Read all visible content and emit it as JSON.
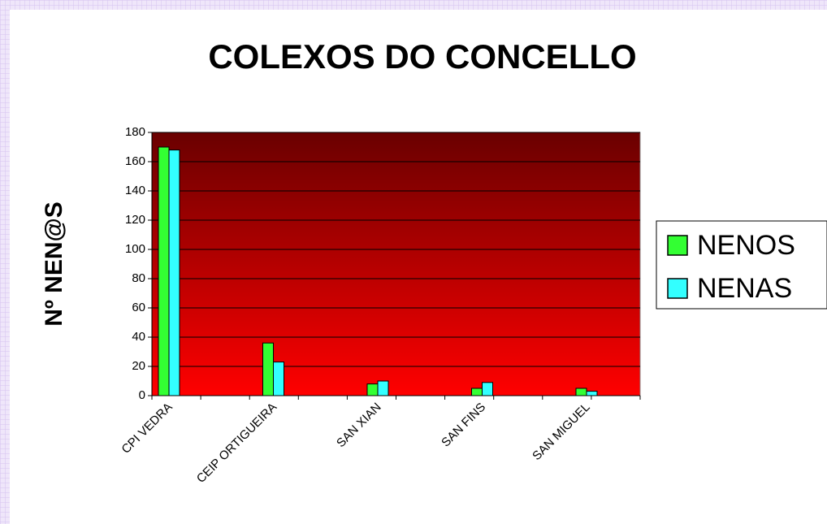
{
  "chart_data": {
    "type": "bar",
    "title": "COLEXOS DO CONCELLO",
    "y_label": "Nº NEN@S",
    "categories": [
      "CPI VEDRA",
      "CEIP ORTIGUEIRA",
      "SAN XIAN",
      "SAN FINS",
      "SAN MIGUEL"
    ],
    "series": [
      {
        "name": "NENOS",
        "color": "#33ff33",
        "values": [
          170,
          36,
          8,
          5,
          5
        ]
      },
      {
        "name": "NENAS",
        "color": "#33ffff",
        "values": [
          168,
          23,
          10,
          9,
          3
        ]
      }
    ],
    "ylim": [
      0,
      180
    ],
    "yticks": [
      0,
      20,
      40,
      60,
      80,
      100,
      120,
      140,
      160,
      180
    ],
    "grid": true,
    "legend": "right"
  }
}
